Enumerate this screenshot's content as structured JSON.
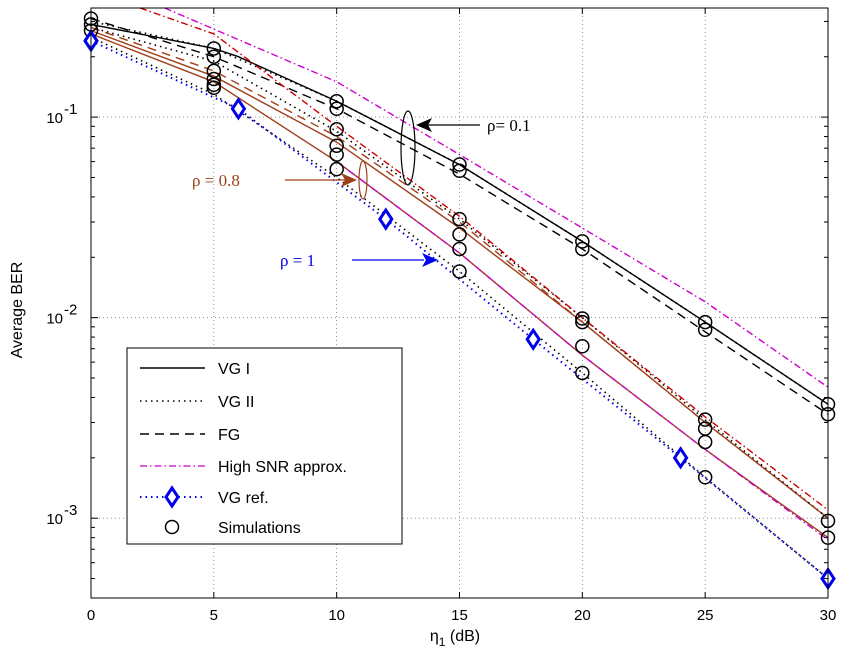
{
  "chart_data": {
    "type": "line",
    "xlabel_main": "η",
    "xlabel_sub": "1",
    "xlabel_unit": " (dB)",
    "ylabel": "Average BER",
    "xlim": [
      0,
      30
    ],
    "ylim": [
      0.0004,
      0.35
    ],
    "yscale": "log",
    "grid": true,
    "x_ticks": [
      "0",
      "5",
      "10",
      "15",
      "20",
      "25",
      "30"
    ],
    "y_ticks": [
      {
        "base": "10",
        "exp": "-1",
        "value": 0.1
      },
      {
        "base": "10",
        "exp": "-2",
        "value": 0.01
      },
      {
        "base": "10",
        "exp": "-3",
        "value": 0.001
      }
    ],
    "legend_position": "bottom-left",
    "legend": [
      {
        "label": "VG I",
        "style": "solid",
        "color": "#000000"
      },
      {
        "label": "VG II",
        "style": "dotted",
        "color": "#000000"
      },
      {
        "label": "FG",
        "style": "dashed",
        "color": "#000000"
      },
      {
        "label": "High SNR approx.",
        "style": "dashdot",
        "color": "#cc00cc"
      },
      {
        "label": "VG ref.",
        "style": "dotted-diamond",
        "color": "#0000ee"
      },
      {
        "label": "Simulations",
        "style": "circle",
        "color": "#000000"
      }
    ],
    "annotations": [
      {
        "text": "ρ= 0.1",
        "color": "#000000"
      },
      {
        "text": "ρ = 0.8",
        "color": "#a0401a"
      },
      {
        "text": "ρ = 1",
        "color": "#0000ee"
      }
    ],
    "series": [
      {
        "group": "ρ=0.1",
        "kind": "VG I",
        "color": "#000000",
        "style": "solid",
        "x": [
          0,
          5,
          6,
          10,
          15,
          20,
          25,
          30
        ],
        "y": [
          0.29,
          0.22,
          0.2,
          0.12,
          0.058,
          0.024,
          0.0095,
          0.0037
        ]
      },
      {
        "group": "ρ=0.1",
        "kind": "VG II",
        "color": "#000000",
        "style": "dotted",
        "x": [
          0,
          5,
          10,
          15,
          20,
          25,
          30
        ],
        "y": [
          0.3,
          0.22,
          0.12,
          0.058,
          0.024,
          0.0095,
          0.0037
        ]
      },
      {
        "group": "ρ=0.1",
        "kind": "FG",
        "color": "#000000",
        "style": "dashed",
        "x": [
          0,
          5,
          10,
          15,
          20,
          25,
          30
        ],
        "y": [
          0.31,
          0.2,
          0.11,
          0.052,
          0.022,
          0.0085,
          0.0033
        ]
      },
      {
        "group": "ρ=0.1",
        "kind": "High SNR approx.",
        "color": "#cc00cc",
        "style": "dashdot",
        "x": [
          3,
          10,
          15,
          20,
          25,
          30
        ],
        "y": [
          0.42,
          0.15,
          0.065,
          0.028,
          0.012,
          0.0045
        ]
      },
      {
        "group": "ρ=0.8",
        "kind": "VG I",
        "color": "#a0401a",
        "style": "solid",
        "x": [
          0,
          5,
          10,
          15,
          20,
          25,
          30
        ],
        "y": [
          0.27,
          0.16,
          0.075,
          0.028,
          0.0095,
          0.003,
          0.001
        ]
      },
      {
        "group": "ρ=0.8",
        "kind": "VG II",
        "color": "#000000",
        "style": "dotted",
        "x": [
          0,
          5,
          10,
          15,
          20,
          25,
          30
        ],
        "y": [
          0.28,
          0.19,
          0.085,
          0.031,
          0.01,
          0.0031,
          0.001
        ]
      },
      {
        "group": "ρ=0.8",
        "kind": "FG",
        "color": "#a0401a",
        "style": "dashed",
        "x": [
          0,
          5,
          10,
          15,
          20,
          25,
          30
        ],
        "y": [
          0.28,
          0.17,
          0.08,
          0.03,
          0.0095,
          0.003,
          0.001
        ]
      },
      {
        "group": "ρ=0.8",
        "kind": "High SNR approx.",
        "color": "#cc0000",
        "style": "dashdot",
        "x": [
          2,
          5,
          10,
          15,
          20,
          25,
          30
        ],
        "y": [
          0.45,
          0.26,
          0.09,
          0.032,
          0.01,
          0.0032,
          0.0011
        ]
      },
      {
        "group": "ρ=1",
        "kind": "VG I",
        "color": "#a0401a",
        "style": "solid",
        "x": [
          0,
          5,
          10,
          15,
          20,
          25,
          30
        ],
        "y": [
          0.26,
          0.15,
          0.06,
          0.021,
          0.0065,
          0.0022,
          0.0008
        ]
      },
      {
        "group": "ρ=1",
        "kind": "VG II",
        "color": "#000000",
        "style": "dotted",
        "x": [
          0,
          5,
          10,
          15,
          20,
          25,
          30
        ],
        "y": [
          0.25,
          0.13,
          0.05,
          0.017,
          0.0053,
          0.0016,
          0.0005
        ]
      },
      {
        "group": "ρ=1",
        "kind": "High SNR approx.",
        "color": "#cc00cc",
        "style": "dashdot",
        "x": [
          10,
          15,
          20,
          25,
          30
        ],
        "y": [
          0.06,
          0.021,
          0.0065,
          0.0022,
          0.00078
        ]
      },
      {
        "group": "ρ=1",
        "kind": "VG ref.",
        "color": "#0000ee",
        "style": "dotted",
        "x": [
          0,
          6,
          12,
          18,
          24,
          30
        ],
        "y": [
          0.24,
          0.11,
          0.031,
          0.0078,
          0.002,
          0.0005
        ]
      }
    ],
    "vg_ref_markers": {
      "x": [
        0,
        6,
        12,
        18,
        24,
        30
      ],
      "y": [
        0.24,
        0.11,
        0.031,
        0.0078,
        0.002,
        0.0005
      ]
    },
    "simulations": {
      "x": [
        0,
        0,
        0,
        5,
        5,
        5,
        5,
        5,
        5,
        10,
        10,
        10,
        10,
        10,
        10,
        15,
        15,
        15,
        15,
        15,
        15,
        20,
        20,
        20,
        20,
        20,
        20,
        25,
        25,
        25,
        25,
        25,
        25,
        30,
        30,
        30,
        30
      ],
      "y": [
        0.31,
        0.29,
        0.27,
        0.22,
        0.2,
        0.17,
        0.155,
        0.145,
        0.14,
        0.12,
        0.11,
        0.087,
        0.072,
        0.065,
        0.055,
        0.058,
        0.054,
        0.031,
        0.026,
        0.022,
        0.017,
        0.024,
        0.022,
        0.0099,
        0.0095,
        0.0072,
        0.0053,
        0.0095,
        0.0087,
        0.0031,
        0.0028,
        0.0024,
        0.0016,
        0.0037,
        0.0033,
        0.00097,
        0.0008
      ]
    }
  }
}
